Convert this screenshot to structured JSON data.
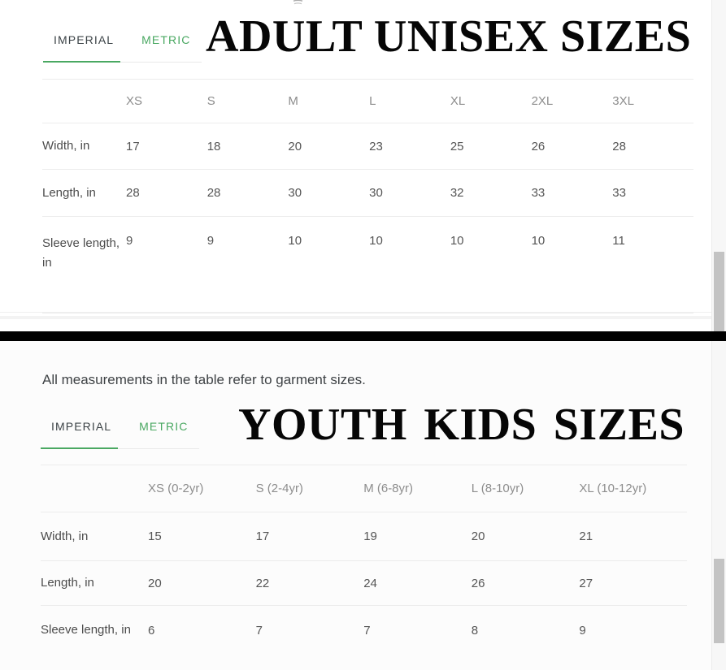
{
  "note": {
    "text": "All measurements in the table refer to garment sizes."
  },
  "adult": {
    "title": "ADULT UNISEX SIZES",
    "tabs": [
      {
        "label": "IMPERIAL",
        "active": true
      },
      {
        "label": "METRIC",
        "active": false
      }
    ],
    "table": {
      "columns": [
        "XS",
        "S",
        "M",
        "L",
        "XL",
        "2XL",
        "3XL"
      ],
      "rows": [
        {
          "label": "Width, in",
          "values": [
            "17",
            "18",
            "20",
            "23",
            "25",
            "26",
            "28"
          ]
        },
        {
          "label": "Length, in",
          "values": [
            "28",
            "28",
            "30",
            "30",
            "32",
            "33",
            "33"
          ]
        },
        {
          "label": "Sleeve length, in",
          "values": [
            "9",
            "9",
            "10",
            "10",
            "10",
            "10",
            "11"
          ]
        }
      ]
    }
  },
  "youth": {
    "title": "YOUTH KIDS SIZES",
    "tabs": [
      {
        "label": "IMPERIAL",
        "active": true
      },
      {
        "label": "METRIC",
        "active": false
      }
    ],
    "table": {
      "columns": [
        "XS (0-2yr)",
        "S (2-4yr)",
        "M (6-8yr)",
        "L (8-10yr)",
        "XL (10-12yr)"
      ],
      "rows": [
        {
          "label": "Width, in",
          "values": [
            "15",
            "17",
            "19",
            "20",
            "21"
          ]
        },
        {
          "label": "Length, in",
          "values": [
            "20",
            "22",
            "24",
            "26",
            "27"
          ]
        },
        {
          "label": "Sleeve length, in",
          "values": [
            "6",
            "7",
            "7",
            "8",
            "9"
          ]
        }
      ]
    }
  },
  "colors": {
    "accent_green": "#4aa862",
    "tab_text": "#3c4347",
    "header_text": "#8d8d8d",
    "cell_text": "#555555",
    "label_text": "#4c4c4c",
    "note_text": "#3e4245",
    "border": "#ececec",
    "divider_black": "#000000"
  }
}
